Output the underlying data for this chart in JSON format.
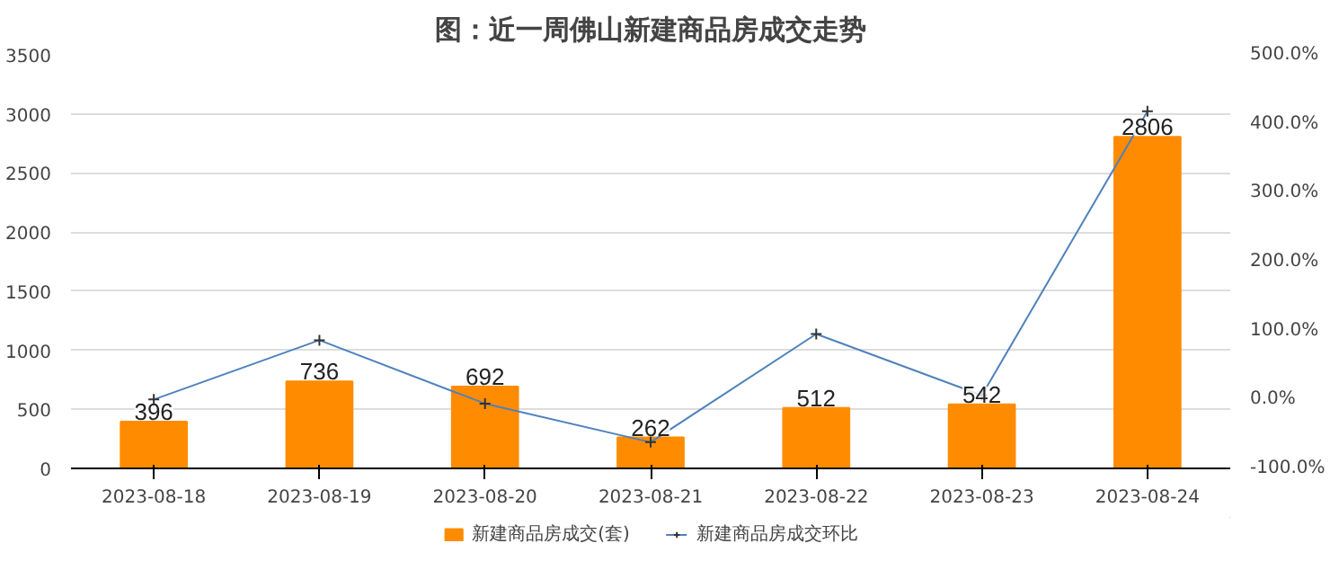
{
  "chart_data": {
    "type": "bar",
    "title": "图：近一周佛山新建商品房成交走势",
    "categories": [
      "2023-08-18",
      "2023-08-19",
      "2023-08-20",
      "2023-08-21",
      "2023-08-22",
      "2023-08-23",
      "2023-08-24"
    ],
    "series": [
      {
        "name": "新建商品房成交(套)",
        "color": "#ff8c00",
        "values": [
          396,
          736,
          692,
          262,
          512,
          542,
          2806
        ],
        "value_labels": [
          "396",
          "736",
          "692",
          "262",
          "512",
          "542",
          "2806"
        ]
      },
      {
        "name": "新建商品房成交环比",
        "type": "line",
        "axis": "y2",
        "color": "#4f81bd",
        "marker": "cross",
        "values": [
          0,
          86,
          -6,
          -62,
          95,
          6,
          418
        ]
      }
    ],
    "ylim": [
      0,
      3500
    ],
    "yticks": [
      0,
      500,
      1000,
      1500,
      2000,
      2500,
      3000,
      3500
    ],
    "y2lim": [
      -100,
      500
    ],
    "y2ticks": [
      {
        "value": -100,
        "label": "-100.0%"
      },
      {
        "value": 0,
        "label": "0.0%"
      },
      {
        "value": 100,
        "label": "100.0%"
      },
      {
        "value": 200,
        "label": "200.0%"
      },
      {
        "value": 300,
        "label": "300.0%"
      },
      {
        "value": 400,
        "label": "400.0%"
      },
      {
        "value": 500,
        "label": "500.0%"
      }
    ],
    "grid": "y",
    "legend": "bottom"
  }
}
